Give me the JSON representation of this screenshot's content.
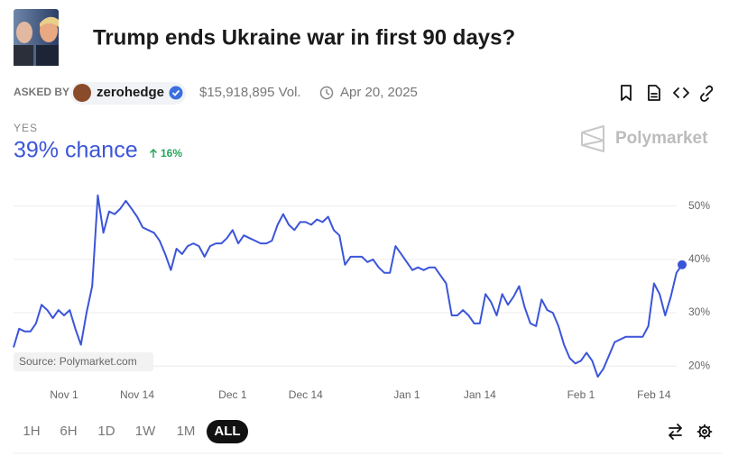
{
  "header": {
    "title": "Trump ends Ukraine war in first 90 days?",
    "asked_by_label": "ASKED BY",
    "user": "zerohedge",
    "volume": "$15,918,895 Vol.",
    "date": "Apr 20, 2025"
  },
  "outcome": {
    "label": "YES",
    "chance": "39% chance",
    "change": "16%"
  },
  "brand": "Polymarket",
  "source": "Source: Polymarket.com",
  "ranges": [
    "1H",
    "6H",
    "1D",
    "1W",
    "1M",
    "ALL"
  ],
  "selected_range": "ALL",
  "chart_data": {
    "type": "line",
    "color": "#3b55d9",
    "categories": [
      null,
      null,
      null,
      null,
      null,
      null,
      null,
      null,
      null,
      "Nov 1",
      null,
      null,
      null,
      null,
      null,
      null,
      null,
      null,
      null,
      null,
      null,
      null,
      "Nov 14",
      null,
      null,
      null,
      null,
      null,
      null,
      null,
      null,
      null,
      null,
      null,
      null,
      null,
      null,
      null,
      null,
      "Dec 1",
      null,
      null,
      null,
      null,
      null,
      null,
      null,
      null,
      null,
      null,
      null,
      null,
      "Dec 14",
      null,
      null,
      null,
      null,
      null,
      null,
      null,
      null,
      null,
      null,
      null,
      null,
      null,
      null,
      null,
      null,
      null,
      "Jan 1",
      null,
      null,
      null,
      null,
      null,
      null,
      null,
      null,
      null,
      null,
      null,
      null,
      "Jan 14",
      null,
      null,
      null,
      null,
      null,
      null,
      null,
      null,
      null,
      null,
      null,
      null,
      null,
      null,
      null,
      null,
      null,
      "Feb 1",
      null,
      null,
      null,
      null,
      null,
      null,
      null,
      null,
      null,
      null,
      null,
      null,
      "Feb 14",
      null,
      null,
      null,
      null,
      null
    ],
    "values": [
      23.5,
      27,
      26.5,
      26.5,
      28,
      31.5,
      30.5,
      29,
      30.5,
      29.5,
      30.5,
      27,
      24,
      30,
      35,
      52,
      45,
      49,
      48.5,
      49.5,
      51,
      49.5,
      48,
      46,
      45.5,
      45,
      43.5,
      41,
      38,
      42,
      41,
      42.5,
      43,
      42.5,
      40.5,
      42.5,
      43,
      43,
      44,
      45.5,
      43,
      44.5,
      44,
      43.5,
      43,
      43,
      43.5,
      46.5,
      48.5,
      46.5,
      45.5,
      47,
      47,
      46.5,
      47.5,
      47,
      48,
      45.5,
      44.5,
      39,
      40.5,
      40.5,
      40.5,
      39.5,
      40,
      38.5,
      37.5,
      37.5,
      42.5,
      41,
      39.5,
      38,
      38.5,
      38,
      38.5,
      38.5,
      37,
      35.5,
      29.5,
      29.5,
      30.5,
      29.5,
      28,
      28,
      33.5,
      32,
      29.5,
      33.5,
      31.5,
      33,
      35,
      31,
      28,
      27.5,
      32.5,
      30.5,
      30,
      27.5,
      24,
      21.5,
      20.5,
      21,
      22.5,
      21,
      18,
      19.5,
      22,
      24.5,
      25,
      25.5,
      25.5,
      25.5,
      25.5,
      27.5,
      35.5,
      33.5,
      29.5,
      33,
      37.5,
      39
    ],
    "ylim": [
      17,
      54
    ],
    "yticks": [
      {
        "value": 20,
        "label": "20%"
      },
      {
        "value": 30,
        "label": "30%"
      },
      {
        "value": 40,
        "label": "40%"
      },
      {
        "value": 50,
        "label": "50%"
      }
    ],
    "grid": true
  }
}
